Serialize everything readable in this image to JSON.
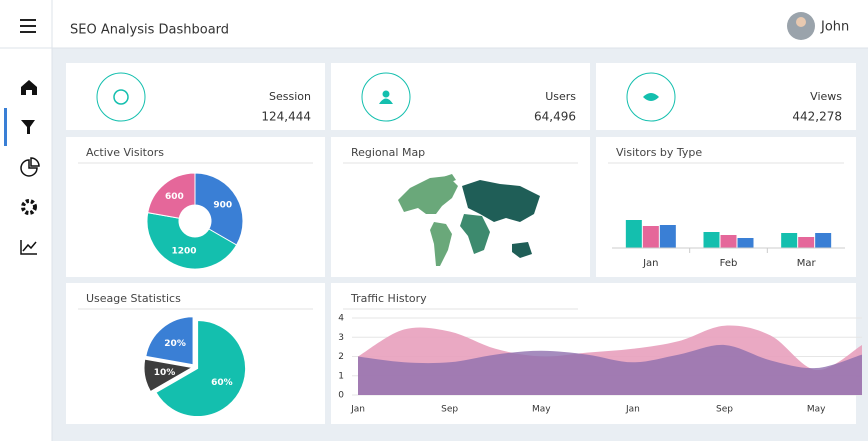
{
  "header": {
    "title": "SEO Analysis Dashboard",
    "user": "John"
  },
  "kpis": [
    {
      "label": "Session",
      "value": "124,444"
    },
    {
      "label": "Users",
      "value": "64,496"
    },
    {
      "label": "Views",
      "value": "442,278"
    }
  ],
  "map_panel": {
    "title": "Regional Map"
  },
  "chart_data": [
    {
      "type": "donut",
      "title": "Active Visitors",
      "values": [
        900,
        1200,
        600
      ],
      "colors": [
        "#3a7fd5",
        "#14bfae",
        "#e5679a"
      ]
    },
    {
      "type": "bar",
      "title": "Visitors by Type",
      "categories": [
        "Jan",
        "Feb",
        "Mar"
      ],
      "ylim": [
        0,
        40
      ],
      "series": [
        {
          "color": "#14bfae",
          "values": [
            28,
            16,
            15
          ]
        },
        {
          "color": "#e5679a",
          "values": [
            22,
            13,
            11
          ]
        },
        {
          "color": "#3a7fd5",
          "values": [
            23,
            10,
            15
          ]
        }
      ]
    },
    {
      "type": "pie",
      "title": "Useage Statistics",
      "values": [
        60,
        10,
        20
      ],
      "value_labels": [
        "60%",
        "10%",
        "20%"
      ],
      "colors": [
        "#14bfae",
        "#3d3d3d",
        "#3a7fd5"
      ]
    },
    {
      "type": "area",
      "title": "Traffic History",
      "categories": [
        "Jan",
        null,
        "Sep",
        null,
        "May",
        null,
        "Jan",
        null,
        "Sep",
        null,
        "May",
        null
      ],
      "ylim": [
        0,
        4
      ],
      "yticks": [
        0,
        1,
        2,
        3,
        4
      ],
      "grid": true,
      "series": [
        {
          "color": "#e8a0bd",
          "values": [
            2.0,
            3.4,
            3.3,
            2.4,
            2.0,
            2.2,
            2.4,
            2.8,
            3.6,
            3.1,
            1.3,
            2.6
          ]
        },
        {
          "color": "#8e6fae",
          "values": [
            2.0,
            1.7,
            1.7,
            2.1,
            2.3,
            2.1,
            1.7,
            2.1,
            2.6,
            1.8,
            1.4,
            2.1
          ]
        }
      ]
    }
  ]
}
